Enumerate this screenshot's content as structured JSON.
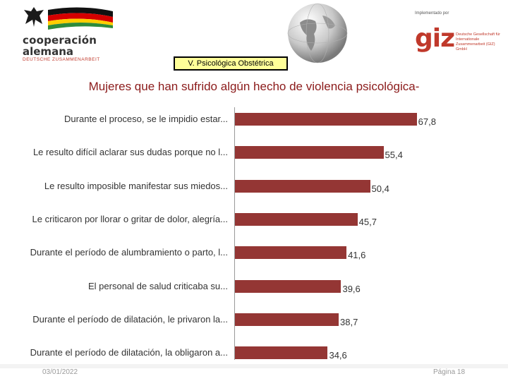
{
  "header": {
    "coop_line1": "cooperación",
    "coop_line2": "alemana",
    "coop_line3": "DEUTSCHE ZUSAMMENARBEIT",
    "giz_implemented": "Implementado por",
    "giz_logo": "giz",
    "giz_text": "Deutsche Gesellschaft für Internationale Zusammenarbeit (GIZ) GmbH"
  },
  "section_badge": "V. Psicológica Obstétrica",
  "footer": {
    "date": "03/01/2022",
    "page": "Página 18"
  },
  "colors": {
    "bar": "#943634",
    "title": "#8b1a1a",
    "badge_bg": "#ffff99",
    "brand_red": "#c0392b"
  },
  "chart_data": {
    "type": "bar",
    "orientation": "horizontal",
    "title": "Mujeres que han sufrido algún hecho de violencia psicológica-",
    "categories": [
      "Durante el proceso, se le impidio estar...",
      "Le resulto difícil aclarar sus dudas porque no l...",
      "Le resulto imposible manifestar sus miedos...",
      "Le criticaron por llorar o gritar de dolor, alegría...",
      "Durante el período de alumbramiento o parto, l...",
      "El personal de salud criticaba su...",
      "Durante el período de dilatación, le privaron la...",
      "Durante el período de dilatación, la obligaron a..."
    ],
    "values": [
      67.8,
      55.4,
      50.4,
      45.7,
      41.6,
      39.6,
      38.7,
      34.6
    ],
    "value_labels": [
      "67,8",
      "55,4",
      "50,4",
      "45,7",
      "41,6",
      "39,6",
      "38,7",
      "34,6"
    ],
    "xlim": [
      0,
      100
    ],
    "xlabel": "",
    "ylabel": ""
  }
}
